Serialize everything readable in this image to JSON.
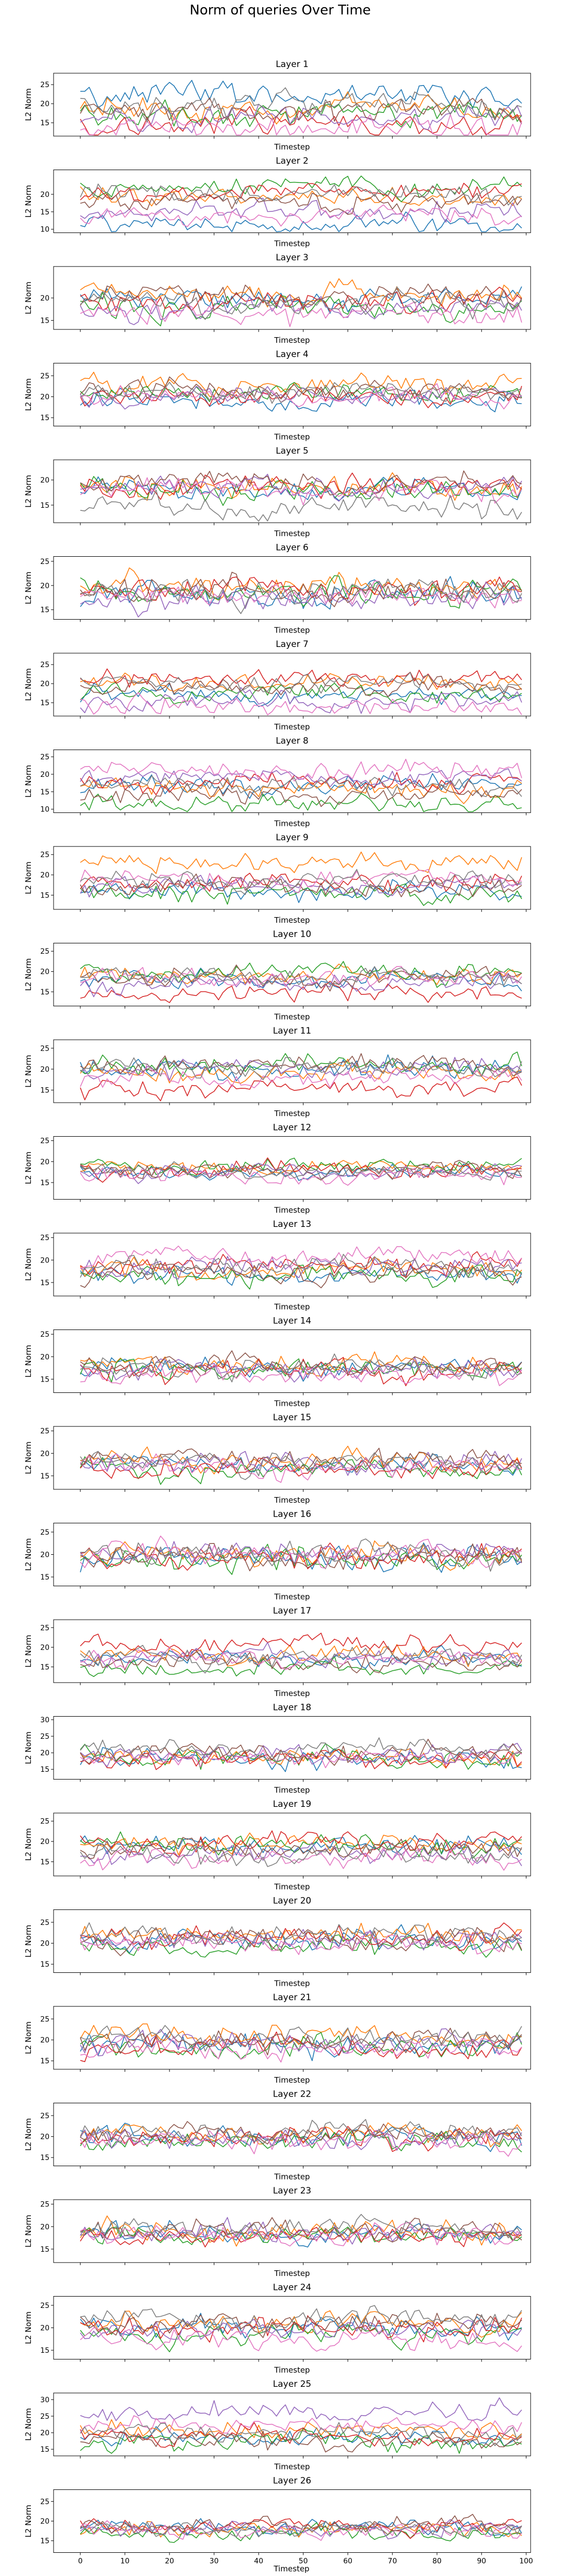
{
  "figure": {
    "title": "Norm of queries Over Time",
    "x_label": "Timestep",
    "y_label": "L2 Norm",
    "series_colors": [
      "#1f77b4",
      "#ff7f0e",
      "#2ca02c",
      "#d62728",
      "#9467bd",
      "#8c564b",
      "#e377c2",
      "#7f7f7f"
    ]
  },
  "chart_data": [
    {
      "type": "line",
      "title": "Layer 1",
      "ylim": [
        11.5,
        28
      ],
      "yticks": [
        15,
        20,
        25
      ],
      "x": [
        0,
        100
      ],
      "xticks": [
        0,
        10,
        20,
        30,
        40,
        50,
        60,
        70,
        80,
        90,
        100
      ],
      "series_centers": [
        22,
        19,
        17.5,
        14.5,
        16,
        18.5,
        13.5,
        20
      ],
      "noise": 2.2,
      "seed": 1
    },
    {
      "type": "line",
      "title": "Layer 2",
      "ylim": [
        9,
        27
      ],
      "yticks": [
        10,
        15,
        20
      ],
      "x": [
        0,
        100
      ],
      "xticks": [
        0,
        10,
        20,
        30,
        40,
        50,
        60,
        70,
        80,
        90,
        100
      ],
      "series_centers": [
        11,
        19,
        22,
        21,
        15,
        18,
        13.5,
        20
      ],
      "noise": 1.8,
      "seed": 2
    },
    {
      "type": "line",
      "title": "Layer 3",
      "ylim": [
        13,
        27
      ],
      "yticks": [
        15,
        20
      ],
      "x": [
        0,
        100
      ],
      "xticks": [
        0,
        10,
        20,
        30,
        40,
        50,
        60,
        70,
        80,
        90,
        100
      ],
      "series_centers": [
        20,
        21,
        18,
        19,
        17.5,
        20.5,
        16.5,
        19
      ],
      "noise": 1.8,
      "seed": 3
    },
    {
      "type": "line",
      "title": "Layer 4",
      "ylim": [
        13,
        28
      ],
      "yticks": [
        15,
        20,
        25
      ],
      "x": [
        0,
        100
      ],
      "xticks": [
        0,
        10,
        20,
        30,
        40,
        50,
        60,
        70,
        80,
        90,
        100
      ],
      "series_centers": [
        19,
        23,
        21,
        20,
        20,
        21.5,
        20,
        21
      ],
      "noise": 1.6,
      "seed": 4
    },
    {
      "type": "line",
      "title": "Layer 5",
      "ylim": [
        11.5,
        24
      ],
      "yticks": [
        15,
        20
      ],
      "x": [
        0,
        100
      ],
      "xticks": [
        0,
        10,
        20,
        30,
        40,
        50,
        60,
        70,
        80,
        90,
        100
      ],
      "series_centers": [
        18,
        18.5,
        18,
        19,
        18.5,
        19.5,
        18,
        14.5
      ],
      "noise": 1.5,
      "seed": 5
    },
    {
      "type": "line",
      "title": "Layer 6",
      "ylim": [
        13,
        26
      ],
      "yticks": [
        15,
        20,
        25
      ],
      "x": [
        0,
        100
      ],
      "xticks": [
        0,
        10,
        20,
        30,
        40,
        50,
        60,
        70,
        80,
        90,
        100
      ],
      "series_centers": [
        18,
        20,
        19,
        19.5,
        17,
        19,
        18,
        18.5
      ],
      "noise": 1.8,
      "seed": 6
    },
    {
      "type": "line",
      "title": "Layer 7",
      "ylim": [
        11.5,
        28
      ],
      "yticks": [
        15,
        20,
        25
      ],
      "x": [
        0,
        100
      ],
      "xticks": [
        0,
        10,
        20,
        30,
        40,
        50,
        60,
        70,
        80,
        90,
        100
      ],
      "series_centers": [
        17,
        20,
        17.5,
        21.5,
        15.5,
        19,
        14,
        20
      ],
      "noise": 1.7,
      "seed": 7
    },
    {
      "type": "line",
      "title": "Layer 8",
      "ylim": [
        9,
        27
      ],
      "yticks": [
        10,
        15,
        20,
        25
      ],
      "x": [
        0,
        100
      ],
      "xticks": [
        0,
        10,
        20,
        30,
        40,
        50,
        60,
        70,
        80,
        90,
        100
      ],
      "series_centers": [
        17,
        16,
        11.5,
        18,
        19,
        14,
        21,
        17
      ],
      "noise": 1.8,
      "seed": 8
    },
    {
      "type": "line",
      "title": "Layer 9",
      "ylim": [
        11.5,
        27
      ],
      "yticks": [
        15,
        20,
        25
      ],
      "x": [
        0,
        100
      ],
      "xticks": [
        0,
        10,
        20,
        30,
        40,
        50,
        60,
        70,
        80,
        90,
        100
      ],
      "series_centers": [
        16,
        23,
        15.5,
        18,
        17,
        17,
        19,
        18.5
      ],
      "noise": 1.6,
      "seed": 9
    },
    {
      "type": "line",
      "title": "Layer 10",
      "ylim": [
        11.5,
        27
      ],
      "yticks": [
        15,
        20,
        25
      ],
      "x": [
        0,
        100
      ],
      "xticks": [
        0,
        10,
        20,
        30,
        40,
        50,
        60,
        70,
        80,
        90,
        100
      ],
      "series_centers": [
        18,
        19,
        19.5,
        15,
        17,
        18.5,
        18.5,
        19
      ],
      "noise": 1.5,
      "seed": 10
    },
    {
      "type": "line",
      "title": "Layer 11",
      "ylim": [
        12,
        27
      ],
      "yticks": [
        15,
        20,
        25
      ],
      "x": [
        0,
        100
      ],
      "xticks": [
        0,
        10,
        20,
        30,
        40,
        50,
        60,
        70,
        80,
        90,
        100
      ],
      "series_centers": [
        20,
        19,
        21,
        15.5,
        20,
        21,
        18,
        20
      ],
      "noise": 1.7,
      "seed": 11
    },
    {
      "type": "line",
      "title": "Layer 12",
      "ylim": [
        11,
        26
      ],
      "yticks": [
        15,
        20,
        25
      ],
      "x": [
        0,
        100
      ],
      "xticks": [
        0,
        10,
        20,
        30,
        40,
        50,
        60,
        70,
        80,
        90,
        100
      ],
      "series_centers": [
        17.5,
        18.5,
        19,
        18,
        17.5,
        18,
        16.5,
        17.5
      ],
      "noise": 1.3,
      "seed": 12
    },
    {
      "type": "line",
      "title": "Layer 13",
      "ylim": [
        12,
        26
      ],
      "yticks": [
        15,
        20,
        25
      ],
      "x": [
        0,
        100
      ],
      "xticks": [
        0,
        10,
        20,
        30,
        40,
        50,
        60,
        70,
        80,
        90,
        100
      ],
      "series_centers": [
        17,
        17.5,
        16.5,
        19,
        18.5,
        17,
        21,
        18.5
      ],
      "noise": 1.6,
      "seed": 13
    },
    {
      "type": "line",
      "title": "Layer 14",
      "ylim": [
        12,
        26
      ],
      "yticks": [
        15,
        20,
        25
      ],
      "x": [
        0,
        100
      ],
      "xticks": [
        0,
        10,
        20,
        30,
        40,
        50,
        60,
        70,
        80,
        90,
        100
      ],
      "series_centers": [
        17.5,
        18.5,
        17,
        17,
        17.5,
        18,
        16,
        17.5
      ],
      "noise": 1.6,
      "seed": 14
    },
    {
      "type": "line",
      "title": "Layer 15",
      "ylim": [
        12,
        26
      ],
      "yticks": [
        15,
        20,
        25
      ],
      "x": [
        0,
        100
      ],
      "xticks": [
        0,
        10,
        20,
        30,
        40,
        50,
        60,
        70,
        80,
        90,
        100
      ],
      "series_centers": [
        17.5,
        18.5,
        16.5,
        17,
        18,
        18.5,
        17,
        18
      ],
      "noise": 1.6,
      "seed": 15
    },
    {
      "type": "line",
      "title": "Layer 16",
      "ylim": [
        13,
        27
      ],
      "yticks": [
        15,
        20,
        25
      ],
      "x": [
        0,
        100
      ],
      "xticks": [
        0,
        10,
        20,
        30,
        40,
        50,
        60,
        70,
        80,
        90,
        100
      ],
      "series_centers": [
        19,
        20,
        19,
        19.5,
        20.5,
        19.5,
        20,
        20
      ],
      "noise": 1.8,
      "seed": 16
    },
    {
      "type": "line",
      "title": "Layer 17",
      "ylim": [
        11,
        27
      ],
      "yticks": [
        15,
        20,
        25
      ],
      "x": [
        0,
        100
      ],
      "xticks": [
        0,
        10,
        20,
        30,
        40,
        50,
        60,
        70,
        80,
        90,
        100
      ],
      "series_centers": [
        17,
        18,
        14.5,
        21,
        17.5,
        16,
        17,
        17.5
      ],
      "noise": 1.6,
      "seed": 17
    },
    {
      "type": "line",
      "title": "Layer 18",
      "ylim": [
        12,
        31
      ],
      "yticks": [
        15,
        20,
        25,
        30
      ],
      "x": [
        0,
        100
      ],
      "xticks": [
        0,
        10,
        20,
        30,
        40,
        50,
        60,
        70,
        80,
        90,
        100
      ],
      "series_centers": [
        18,
        19,
        18.5,
        18,
        19.5,
        20,
        18.5,
        21
      ],
      "noise": 2.0,
      "seed": 18
    },
    {
      "type": "line",
      "title": "Layer 19",
      "ylim": [
        11.5,
        27
      ],
      "yticks": [
        15,
        20,
        25
      ],
      "x": [
        0,
        100
      ],
      "xticks": [
        0,
        10,
        20,
        30,
        40,
        50,
        60,
        70,
        80,
        90,
        100
      ],
      "series_centers": [
        19,
        19.5,
        19,
        20,
        17,
        18,
        16,
        16.5
      ],
      "noise": 1.7,
      "seed": 19
    },
    {
      "type": "line",
      "title": "Layer 20",
      "ylim": [
        13,
        28
      ],
      "yticks": [
        15,
        20,
        25
      ],
      "x": [
        0,
        100
      ],
      "xticks": [
        0,
        10,
        20,
        30,
        40,
        50,
        60,
        70,
        80,
        90,
        100
      ],
      "series_centers": [
        20.5,
        22,
        19,
        21.5,
        21,
        21,
        20,
        22
      ],
      "noise": 1.7,
      "seed": 20
    },
    {
      "type": "line",
      "title": "Layer 21",
      "ylim": [
        13,
        28
      ],
      "yticks": [
        15,
        20,
        25
      ],
      "x": [
        0,
        100
      ],
      "xticks": [
        0,
        10,
        20,
        30,
        40,
        50,
        60,
        70,
        80,
        90,
        100
      ],
      "series_centers": [
        19,
        21,
        18.5,
        18,
        19.5,
        20,
        18,
        20.5
      ],
      "noise": 1.9,
      "seed": 21
    },
    {
      "type": "line",
      "title": "Layer 22",
      "ylim": [
        13,
        28
      ],
      "yticks": [
        15,
        20,
        25
      ],
      "x": [
        0,
        100
      ],
      "xticks": [
        0,
        10,
        20,
        30,
        40,
        50,
        60,
        70,
        80,
        90,
        100
      ],
      "series_centers": [
        20,
        20.5,
        19,
        20,
        19.5,
        20.5,
        19,
        21
      ],
      "noise": 1.7,
      "seed": 22
    },
    {
      "type": "line",
      "title": "Layer 23",
      "ylim": [
        12,
        26
      ],
      "yticks": [
        15,
        20,
        25
      ],
      "x": [
        0,
        100
      ],
      "xticks": [
        0,
        10,
        20,
        30,
        40,
        50,
        60,
        70,
        80,
        90,
        100
      ],
      "series_centers": [
        18.5,
        19,
        18.5,
        18,
        18.5,
        19,
        18,
        19.5
      ],
      "noise": 1.6,
      "seed": 23
    },
    {
      "type": "line",
      "title": "Layer 24",
      "ylim": [
        13,
        27
      ],
      "yticks": [
        15,
        20,
        25
      ],
      "x": [
        0,
        100
      ],
      "xticks": [
        0,
        10,
        20,
        30,
        40,
        50,
        60,
        70,
        80,
        90,
        100
      ],
      "series_centers": [
        20,
        21,
        18.5,
        20,
        19.5,
        21,
        17.5,
        22
      ],
      "noise": 1.7,
      "seed": 24
    },
    {
      "type": "line",
      "title": "Layer 25",
      "ylim": [
        13,
        32
      ],
      "yticks": [
        15,
        20,
        25,
        30
      ],
      "x": [
        0,
        100
      ],
      "xticks": [
        0,
        10,
        20,
        30,
        40,
        50,
        60,
        70,
        80,
        90,
        100
      ],
      "series_centers": [
        18.5,
        21,
        17,
        19,
        26,
        17.5,
        22,
        20
      ],
      "noise": 2.0,
      "seed": 25
    },
    {
      "type": "line",
      "title": "Layer 26",
      "ylim": [
        12,
        28
      ],
      "yticks": [
        15,
        20,
        25
      ],
      "x": [
        0,
        100
      ],
      "xticks": [
        0,
        10,
        20,
        30,
        40,
        50,
        60,
        70,
        80,
        90,
        100
      ],
      "series_centers": [
        18.5,
        18,
        17,
        19,
        18,
        19,
        17.5,
        18
      ],
      "noise": 1.4,
      "seed": 26
    }
  ]
}
